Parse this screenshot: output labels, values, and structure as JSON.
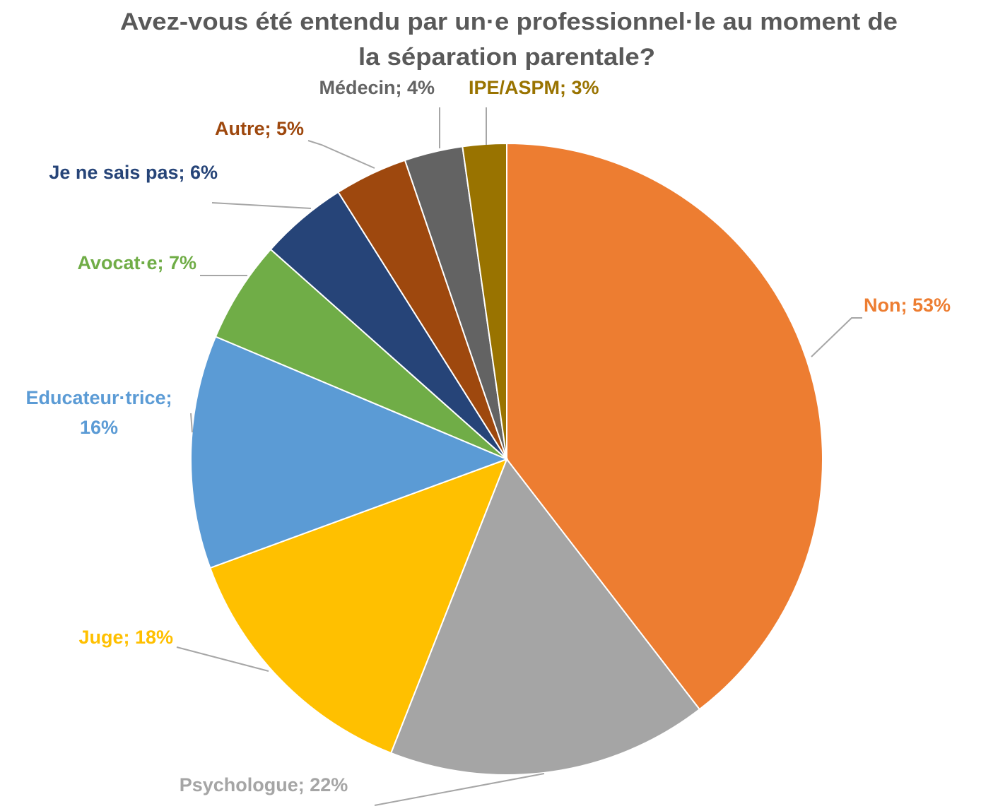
{
  "chart_data": {
    "type": "pie",
    "title": [
      "Avez-vous été entendu par un·e professionnel·le au moment de",
      "la séparation parentale?"
    ],
    "values": [
      53,
      22,
      18,
      16,
      7,
      6,
      5,
      4,
      3
    ],
    "value_labels": [
      "Non; 53%",
      "Psychologue; 22%",
      "Juge; 18%",
      "Educateur·trice;\n16%",
      "Avocat·e; 7%",
      "Je ne sais pas; 6%",
      "Autre; 5%",
      "Médecin; 4%",
      "IPE/ASPM; 3%"
    ],
    "colors": [
      "#ed7d31",
      "#a5a5a5",
      "#ffc000",
      "#5b9bd5",
      "#70ad47",
      "#264478",
      "#9e480e",
      "#636363",
      "#997300"
    ]
  }
}
